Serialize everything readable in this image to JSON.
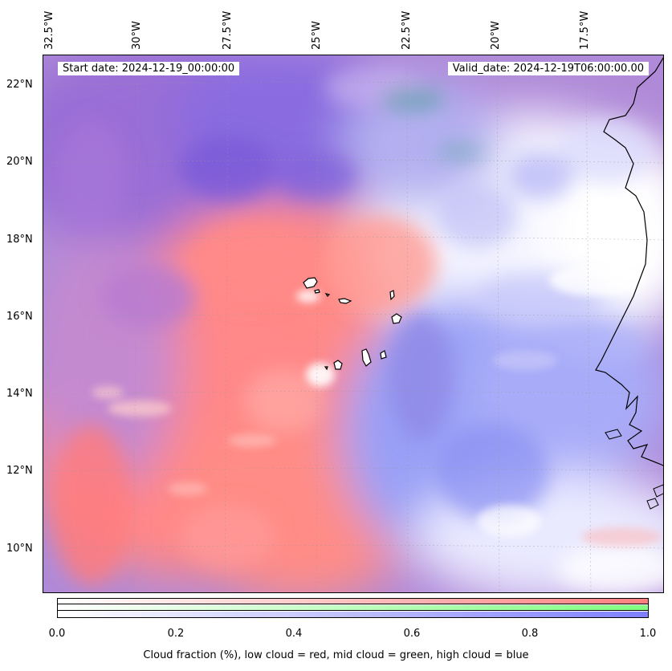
{
  "map": {
    "start_date_label": "Start date: 2024-12-19_00:00:00",
    "valid_date_label": "Valid_date: 2024-12-19T06:00:00.00",
    "longitude_labels": [
      "32.5°W",
      "30°W",
      "27.5°W",
      "25°W",
      "22.5°W",
      "20°W",
      "17.5°W"
    ],
    "latitude_labels": [
      "22°N",
      "20°N",
      "18°N",
      "16°N",
      "14°N",
      "12°N",
      "10°N"
    ],
    "colors": {
      "low_cloud": "#ff7f7f",
      "mid_cloud": "#7fff7f",
      "high_cloud": "#7f7fff",
      "background": "#ffffff",
      "coastline": "#000000"
    }
  },
  "colorbar": {
    "ticks": [
      "0.0",
      "0.2",
      "0.4",
      "0.6",
      "0.8",
      "1.0"
    ],
    "label": "Cloud fraction (%), low cloud = red, mid cloud = green, high cloud = blue"
  }
}
